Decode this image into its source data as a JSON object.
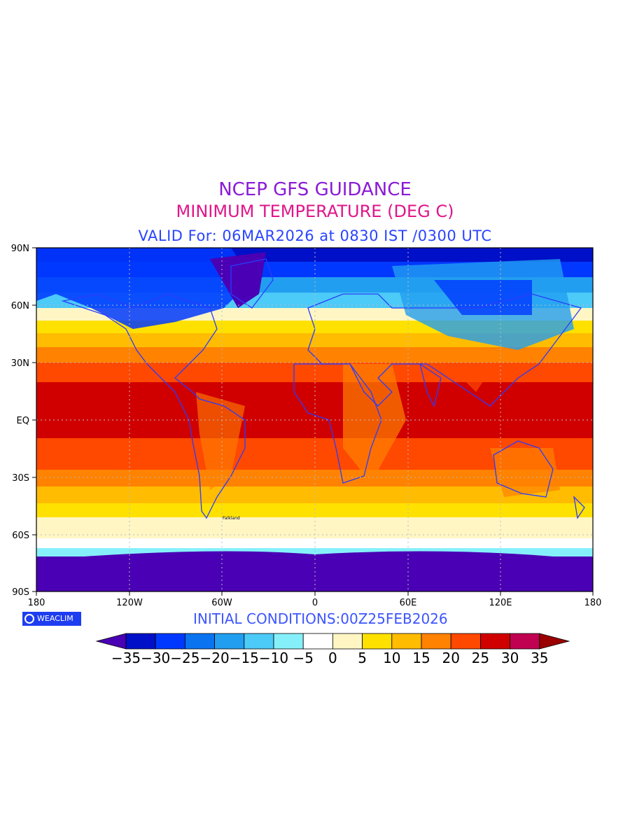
{
  "titles": {
    "line1": "NCEP GFS GUIDANCE",
    "line2": "MINIMUM TEMPERATURE (DEG C)",
    "line3": "VALID For: 06MAR2026 at 0830 IST /0300 UTC"
  },
  "axes": {
    "lat_labels": [
      "90N",
      "60N",
      "30N",
      "EQ",
      "30S",
      "60S",
      "90S"
    ],
    "lon_labels": [
      "180",
      "120W",
      "60W",
      "0",
      "60E",
      "120E",
      "180"
    ]
  },
  "logo": {
    "text": "WEACLIM",
    "icon": "copyright-icon"
  },
  "init_conditions": "INITIAL CONDITIONS:00Z25FEB2026",
  "colorbar": {
    "colors": [
      "#4a00b4",
      "#0010c8",
      "#0038ff",
      "#0a74f0",
      "#229ef0",
      "#4ccaf8",
      "#86f0fa",
      "#ffffff",
      "#fff6c4",
      "#ffe100",
      "#ffbc00",
      "#ff8200",
      "#ff4800",
      "#d10000",
      "#c00050",
      "#9a0000"
    ],
    "labels": [
      "−35",
      "−30",
      "−25",
      "−20",
      "−15",
      "−10",
      "−5",
      "0",
      "5",
      "10",
      "15",
      "20",
      "25",
      "30",
      "35"
    ]
  },
  "map_labels": {
    "falkland": "Falkland"
  }
}
